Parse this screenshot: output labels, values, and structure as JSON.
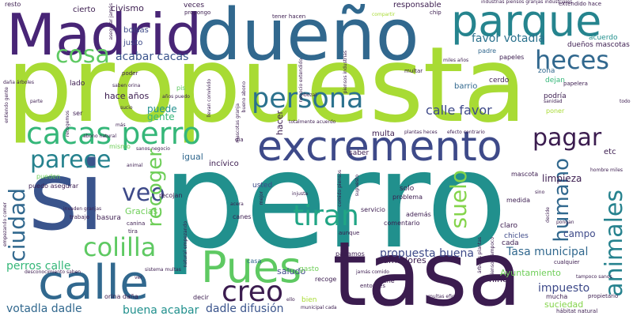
{
  "words": [
    {
      "text": "perro",
      "color": "#21908d"
    },
    {
      "text": "propuesta",
      "color": "#a8db34"
    },
    {
      "text": "tasa",
      "color": "#3b1c4f"
    },
    {
      "text": "si",
      "color": "#3a548c"
    },
    {
      "text": "Madrid",
      "color": "#482576"
    },
    {
      "text": "dueño",
      "color": "#31688e"
    },
    {
      "text": "excremento",
      "color": "#3e4a89"
    },
    {
      "text": "Pues",
      "color": "#5ec962"
    },
    {
      "text": "calle",
      "color": "#31688e"
    },
    {
      "text": "parque",
      "color": "#25848e"
    },
    {
      "text": "cacas perro",
      "color": "#35b779"
    },
    {
      "text": "persona",
      "color": "#2c728e"
    },
    {
      "text": "cosa",
      "color": "#5ec962"
    },
    {
      "text": "parece",
      "color": "#26828e"
    },
    {
      "text": "heces",
      "color": "#31688e"
    },
    {
      "text": "pagar",
      "color": "#3b1c4f"
    },
    {
      "text": "colilla",
      "color": "#5ec962"
    },
    {
      "text": "ciudad",
      "color": "#31688e"
    },
    {
      "text": "veo",
      "color": "#3e4a89"
    },
    {
      "text": "recoger",
      "color": "#6ece58"
    },
    {
      "text": "tiran",
      "color": "#21a585"
    },
    {
      "text": "creo",
      "color": "#3b1c4f"
    },
    {
      "text": "suelo",
      "color": "#84d44b"
    },
    {
      "text": "animales",
      "color": "#26828e"
    },
    {
      "text": "humano",
      "color": "#31688e"
    },
    {
      "text": "calle favor",
      "color": "#3e4a89"
    },
    {
      "text": "favor votadla",
      "color": "#2c728e"
    },
    {
      "text": "acabar cacas",
      "color": "#3a548c"
    },
    {
      "text": "perros calle",
      "color": "#35b779"
    },
    {
      "text": "propuesta buena",
      "color": "#3e4a89"
    },
    {
      "text": "Tasa municipal",
      "color": "#31688e"
    },
    {
      "text": "votadla dadle",
      "color": "#31688e"
    },
    {
      "text": "dadle difusión",
      "color": "#3a548c"
    },
    {
      "text": "buena acabar",
      "color": "#21908d"
    },
    {
      "text": "impuesto",
      "color": "#3e4a89"
    },
    {
      "text": "Ayuntamiento",
      "color": "#6ece58"
    },
    {
      "text": "suciedad",
      "color": "#84d44b"
    },
    {
      "text": "campo",
      "color": "#3e4a89"
    },
    {
      "text": "limpieza",
      "color": "#3b1c4f"
    },
    {
      "text": "civismo",
      "color": "#3b1c4f"
    },
    {
      "text": "responsable",
      "color": "#3b1c4f"
    },
    {
      "text": "bolsas",
      "color": "#3e4a89"
    },
    {
      "text": "justo",
      "color": "#3e4a89"
    },
    {
      "text": "hace años",
      "color": "#3b1c4f"
    },
    {
      "text": "puede",
      "color": "#21908d"
    },
    {
      "text": "gente",
      "color": "#35b779"
    },
    {
      "text": "hacer",
      "color": "#3b1c4f"
    },
    {
      "text": "niño",
      "color": "#3b1c4f"
    },
    {
      "text": "saludo",
      "color": "#3e4a89"
    },
    {
      "text": "fumadores",
      "color": "#3b1c4f"
    },
    {
      "text": "Gracias",
      "color": "#6ece58"
    },
    {
      "text": "igual",
      "color": "#31688e"
    },
    {
      "text": "incívico",
      "color": "#3b1c4f"
    },
    {
      "text": "multa",
      "color": "#3b1c4f"
    },
    {
      "text": "barrio",
      "color": "#31688e"
    },
    {
      "text": "cerdo",
      "color": "#3b1c4f"
    },
    {
      "text": "dejan",
      "color": "#35b779"
    },
    {
      "text": "podría",
      "color": "#3b1c4f"
    },
    {
      "text": "zona",
      "color": "#31688e"
    },
    {
      "text": "acuerdo",
      "color": "#21908d"
    },
    {
      "text": "dueños mascotas",
      "color": "#3b1c4f"
    },
    {
      "text": "padre",
      "color": "#31688e"
    },
    {
      "text": "papeles",
      "color": "#3b1c4f"
    },
    {
      "text": "saber",
      "color": "#3b1c4f"
    },
    {
      "text": "solo",
      "color": "#3b1c4f"
    },
    {
      "text": "basura",
      "color": "#3b1c4f"
    },
    {
      "text": "usted",
      "color": "#3e4a89"
    },
    {
      "text": "gasto",
      "color": "#6ece58"
    },
    {
      "text": "cada",
      "color": "#3b1c4f"
    },
    {
      "text": "claro",
      "color": "#3b1c4f"
    },
    {
      "text": "chicles",
      "color": "#3e4a89"
    },
    {
      "text": "servicio",
      "color": "#3b1c4f"
    },
    {
      "text": "además",
      "color": "#3b1c4f"
    },
    {
      "text": "comentario",
      "color": "#3b1c4f"
    },
    {
      "text": "problema",
      "color": "#3b1c4f"
    },
    {
      "text": "medida",
      "color": "#3b1c4f"
    },
    {
      "text": "mascota",
      "color": "#3b1c4f"
    },
    {
      "text": "etc",
      "color": "#3b1c4f"
    },
    {
      "text": "lado",
      "color": "#3b1c4f"
    },
    {
      "text": "veces",
      "color": "#3b1c4f"
    },
    {
      "text": "cierto",
      "color": "#3b1c4f"
    },
    {
      "text": "resto",
      "color": "#3b1c4f"
    },
    {
      "text": "tener hacen",
      "color": "#3b1c4f"
    },
    {
      "text": "extendido hace",
      "color": "#3b1c4f"
    },
    {
      "text": "poder",
      "color": "#3b1c4f"
    },
    {
      "text": "ser",
      "color": "#3b1c4f"
    },
    {
      "text": "pis",
      "color": "#5ec962"
    },
    {
      "text": "dia",
      "color": "#3b1c4f"
    },
    {
      "text": "canes",
      "color": "#3b1c4f"
    },
    {
      "text": "recoge",
      "color": "#3b1c4f"
    },
    {
      "text": "coche",
      "color": "#3b1c4f"
    },
    {
      "text": "mucha",
      "color": "#3b1c4f"
    },
    {
      "text": "decir",
      "color": "#3b1c4f"
    },
    {
      "text": "bien",
      "color": "#a8db34"
    },
    {
      "text": "casa",
      "color": "#31688e"
    },
    {
      "text": "pagamos",
      "color": "#3b1c4f"
    },
    {
      "text": "mismo",
      "color": "#6ece58"
    },
    {
      "text": "pueden",
      "color": "#6ece58"
    },
    {
      "text": "trabajo",
      "color": "#3b1c4f"
    },
    {
      "text": "recojan",
      "color": "#3b1c4f"
    },
    {
      "text": "puedo asegurar",
      "color": "#3b1c4f"
    },
    {
      "text": "orina daña",
      "color": "#3b1c4f"
    },
    {
      "text": "tira",
      "color": "#3b1c4f"
    },
    {
      "text": "canina",
      "color": "#3b1c4f"
    },
    {
      "text": "jamás comido",
      "color": "#3b1c4f"
    },
    {
      "text": "entonces",
      "color": "#3b1c4f"
    },
    {
      "text": "aunque",
      "color": "#3b1c4f"
    },
    {
      "text": "hombre miles",
      "color": "#3b1c4f"
    },
    {
      "text": "cualquier",
      "color": "#3b1c4f"
    },
    {
      "text": "propietario",
      "color": "#3b1c4f"
    },
    {
      "text": "hábitat natural",
      "color": "#3b1c4f"
    },
    {
      "text": "tampoco sanos",
      "color": "#3b1c4f"
    },
    {
      "text": "multas eficaz",
      "color": "#3b1c4f"
    },
    {
      "text": "desconocimiento saben",
      "color": "#3b1c4f"
    },
    {
      "text": "sistema multas",
      "color": "#3b1c4f"
    },
    {
      "text": "llevan convivido",
      "color": "#3b1c4f"
    },
    {
      "text": "bueno abono",
      "color": "#3b1c4f"
    },
    {
      "text": "totalmente acuerdo",
      "color": "#3b1c4f"
    },
    {
      "text": "multar",
      "color": "#3b1c4f"
    },
    {
      "text": "papelera",
      "color": "#3b1c4f"
    },
    {
      "text": "sanidad",
      "color": "#3b1c4f"
    },
    {
      "text": "poner",
      "color": "#a8db34"
    },
    {
      "text": "efecto contrario",
      "color": "#3b1c4f"
    },
    {
      "text": "plantas heces",
      "color": "#3b1c4f"
    },
    {
      "text": "compartir",
      "color": "#a8db34"
    },
    {
      "text": "chip",
      "color": "#3b1c4f"
    },
    {
      "text": "propongo",
      "color": "#3b1c4f"
    },
    {
      "text": "asegurar jamás",
      "color": "#3b1c4f"
    },
    {
      "text": "saben orina",
      "color": "#3b1c4f"
    },
    {
      "text": "abono natural",
      "color": "#3b1c4f"
    },
    {
      "text": "sanos negocio",
      "color": "#3b1c4f"
    },
    {
      "text": "natural empezando",
      "color": "#3b1c4f"
    },
    {
      "text": "municipal cada",
      "color": "#3b1c4f"
    },
    {
      "text": "acera",
      "color": "#3b1c4f"
    },
    {
      "text": "mejor",
      "color": "#3b1c4f"
    },
    {
      "text": "ello",
      "color": "#3b1c4f"
    },
    {
      "text": "ver",
      "color": "#3b1c4f"
    },
    {
      "text": "pongan",
      "color": "#3b1c4f"
    },
    {
      "text": "sino",
      "color": "#3b1c4f"
    },
    {
      "text": "todo",
      "color": "#3b1c4f"
    },
    {
      "text": "miles años",
      "color": "#3b1c4f"
    },
    {
      "text": "parte",
      "color": "#3b1c4f"
    },
    {
      "text": "bozal",
      "color": "#3b1c4f"
    },
    {
      "text": "años puedo",
      "color": "#3b1c4f"
    },
    {
      "text": "sucio",
      "color": "#3b1c4f"
    },
    {
      "text": "daña árboles",
      "color": "#3b1c4f"
    },
    {
      "text": "entiendo gente",
      "color": "#3b1c4f"
    },
    {
      "text": "recogemos",
      "color": "#3b1c4f"
    },
    {
      "text": "más",
      "color": "#3b1c4f"
    },
    {
      "text": "animal",
      "color": "#3b1c4f"
    },
    {
      "text": "industrias piensos granjas industriales",
      "color": "#3b1c4f"
    },
    {
      "text": "piensos industrias",
      "color": "#3b1c4f"
    },
    {
      "text": "negocio extendido",
      "color": "#3b1c4f"
    },
    {
      "text": "comido piensos",
      "color": "#3b1c4f"
    },
    {
      "text": "supuesto",
      "color": "#3b1c4f"
    },
    {
      "text": "injusta",
      "color": "#3b1c4f"
    },
    {
      "text": "árboles plantas",
      "color": "#3b1c4f"
    },
    {
      "text": "mascotas granja",
      "color": "#3b1c4f"
    },
    {
      "text": "piensos tampoco",
      "color": "#3b1c4f"
    },
    {
      "text": "decide",
      "color": "#3b1c4f"
    },
    {
      "text": "empezando comer",
      "color": "#3b1c4f"
    },
    {
      "text": "invaden granjas",
      "color": "#3b1c4f"
    }
  ]
}
